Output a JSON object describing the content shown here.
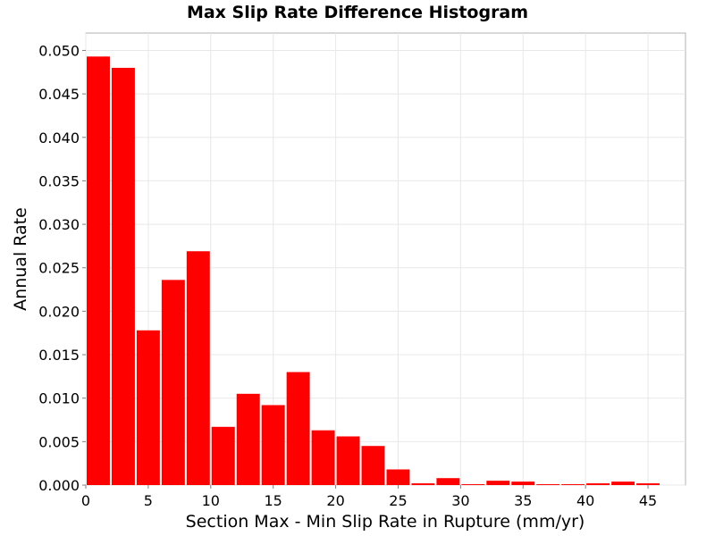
{
  "chart_data": {
    "type": "bar",
    "title": "Max Slip Rate Difference Histogram",
    "xlabel": "Section Max - Min Slip Rate in Rupture (mm/yr)",
    "ylabel": "Annual Rate",
    "xlim": [
      0,
      48
    ],
    "ylim": [
      0,
      0.052
    ],
    "xticks": [
      "0",
      "5",
      "10",
      "15",
      "20",
      "25",
      "30",
      "35",
      "40",
      "45"
    ],
    "yticks": [
      "0.000",
      "0.005",
      "0.010",
      "0.015",
      "0.020",
      "0.025",
      "0.030",
      "0.035",
      "0.040",
      "0.045",
      "0.050"
    ],
    "bin_width": 2,
    "x": [
      1,
      3,
      5,
      7,
      9,
      11,
      13,
      15,
      17,
      19,
      21,
      23,
      25,
      27,
      29,
      31,
      33,
      35,
      37,
      39,
      41,
      43,
      45
    ],
    "values": [
      0.0493,
      0.048,
      0.0178,
      0.0236,
      0.0269,
      0.0067,
      0.0105,
      0.0092,
      0.013,
      0.0063,
      0.0056,
      0.0045,
      0.0018,
      0.0002,
      0.0008,
      0.0001,
      0.0005,
      0.0004,
      0.0001,
      0.0001,
      0.0002,
      0.0004,
      0.0002
    ],
    "bar_color": "#ff0000",
    "grid": true,
    "legend": "none"
  }
}
